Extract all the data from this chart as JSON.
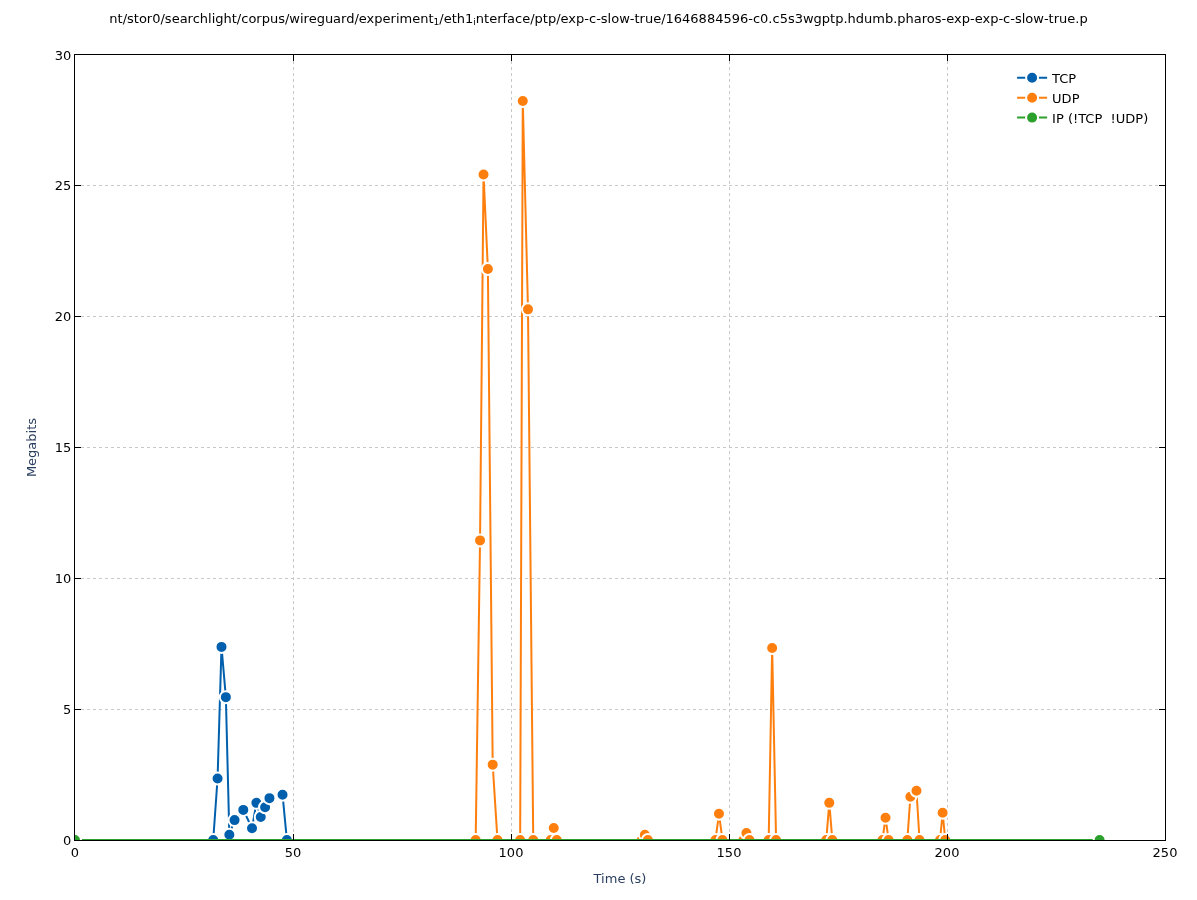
{
  "chart_data": {
    "type": "line",
    "title": "nt/stor0/searchlight/corpus/wireguard/experiment$_{1}$/eth1$_{i}$nterface/ptp/exp-c-slow-true/1646884596-c0.c5s3wgptp.hdumb.pharos-exp-exp-c-slow-true.p",
    "xlabel": "Time (s)",
    "ylabel": "Megabits",
    "series": [
      {
        "name": "TCP",
        "color": "#0060ad",
        "x": [
          31.7,
          32.7,
          33.6,
          34.6,
          35.4,
          36.6,
          38.6,
          40.6,
          41.6,
          42.6,
          43.6,
          44.6,
          47.6,
          48.6
        ],
        "values": [
          0,
          2.35,
          7.38,
          5.46,
          0.2,
          0.76,
          1.15,
          0.45,
          1.42,
          0.88,
          1.25,
          1.6,
          1.73,
          0
        ]
      },
      {
        "name": "UDP",
        "color": "#ff7f0e",
        "x": [
          91.9,
          92.9,
          93.7,
          94.7,
          95.8,
          96.9,
          102.1,
          102.7,
          103.9,
          105.1,
          109.1,
          109.8,
          110.5,
          130,
          130.7,
          131.4,
          146.9,
          147.7,
          148.5,
          153.3,
          154,
          154.7,
          159.1,
          159.9,
          160.8,
          172.3,
          173,
          173.7,
          185.2,
          185.9,
          186.6,
          190.9,
          191.6,
          193,
          193.7,
          198.4,
          199,
          199.6
        ],
        "values": [
          0,
          11.45,
          25.43,
          21.82,
          2.88,
          0,
          0,
          28.24,
          20.28,
          0,
          0,
          0.46,
          0,
          0,
          0.2,
          0,
          0,
          1.0,
          0,
          0,
          0.27,
          0,
          0,
          7.34,
          0,
          0,
          1.42,
          0,
          0,
          0.85,
          0,
          0,
          1.65,
          1.88,
          0,
          0,
          1.04,
          0
        ]
      },
      {
        "name": "IP (!TCP  !UDP)",
        "color": "#2ca02c",
        "x": [
          0,
          235
        ],
        "values": [
          0,
          0
        ]
      }
    ],
    "xlim": [
      0,
      250
    ],
    "xticks": [
      0,
      50,
      100,
      150,
      200,
      250
    ],
    "ylim": [
      0,
      30
    ],
    "yticks": [
      0,
      5,
      10,
      15,
      20,
      25,
      30
    ],
    "grid": true,
    "legend": "top right",
    "marker": "circle",
    "line_style": "solid"
  }
}
